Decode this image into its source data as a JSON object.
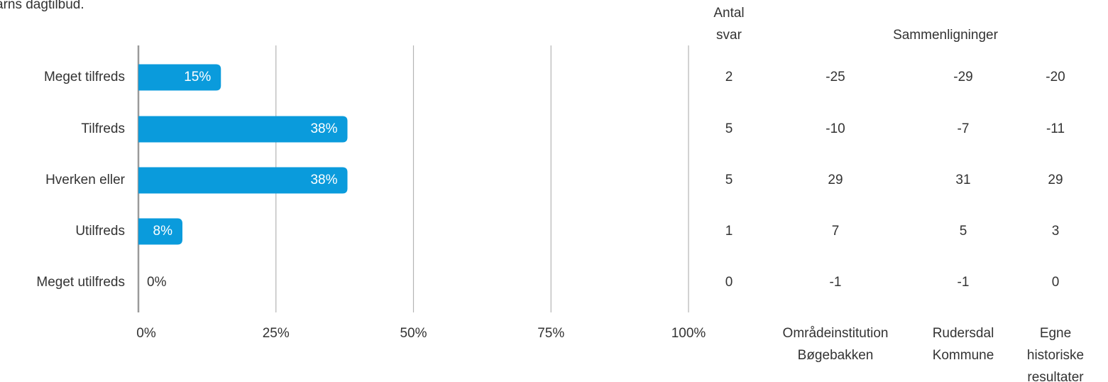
{
  "header_cutoff": "arns dagtilbud.",
  "chart_data": {
    "type": "bar",
    "orientation": "horizontal",
    "categories": [
      "Meget tilfreds",
      "Tilfreds",
      "Hverken eller",
      "Utilfreds",
      "Meget utilfreds"
    ],
    "values": [
      15,
      38,
      38,
      8,
      0
    ],
    "value_labels": [
      "15%",
      "38%",
      "38%",
      "8%",
      "0%"
    ],
    "xlim": [
      0,
      100
    ],
    "x_ticks": [
      0,
      25,
      50,
      75,
      100
    ],
    "x_tick_labels": [
      "0%",
      "25%",
      "50%",
      "75%",
      "100%"
    ],
    "grid": true,
    "bar_color": "#0a9bdc",
    "table": {
      "count_header": [
        "Antal",
        "svar"
      ],
      "comparison_header": "Sammenligninger",
      "counts": [
        "2",
        "5",
        "5",
        "1",
        "0"
      ],
      "comparison_columns": [
        {
          "name_lines": [
            "Områdeinstitution",
            "Bøgebakken"
          ],
          "values": [
            "-25",
            "-10",
            "29",
            "7",
            "-1"
          ]
        },
        {
          "name_lines": [
            "Rudersdal",
            "Kommune"
          ],
          "values": [
            "-29",
            "-7",
            "31",
            "5",
            "-1"
          ]
        },
        {
          "name_lines": [
            "Egne",
            "historiske",
            "resultater"
          ],
          "values": [
            "-20",
            "-11",
            "29",
            "3",
            "0"
          ]
        }
      ]
    }
  }
}
